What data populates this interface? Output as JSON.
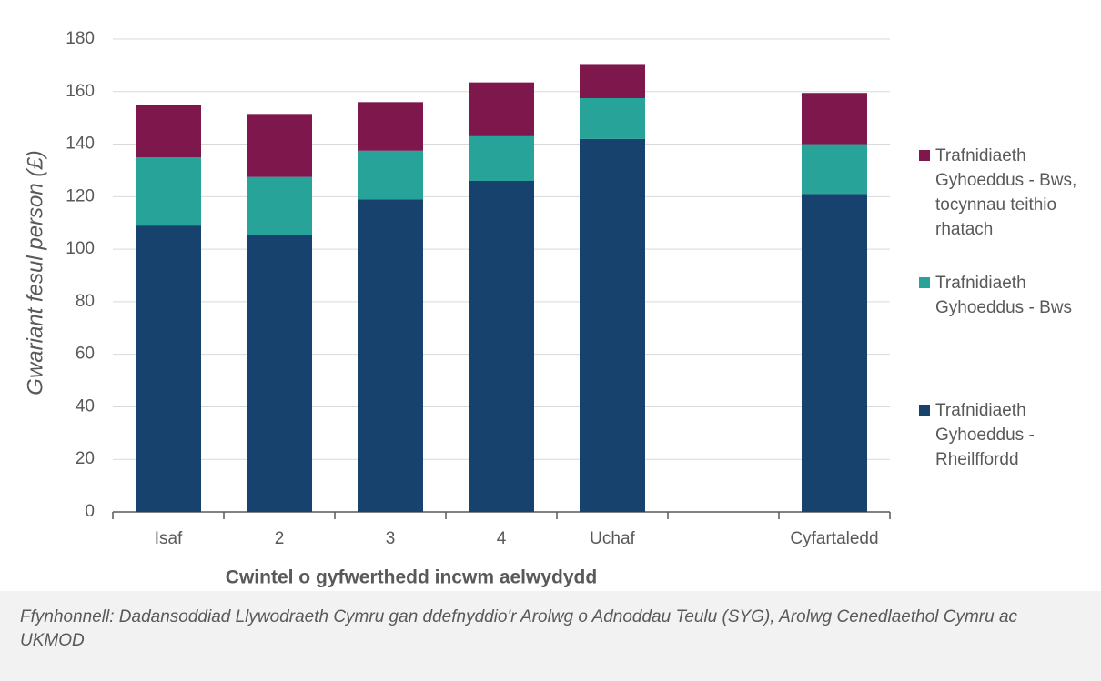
{
  "chart_data": {
    "type": "stacked_bar",
    "ylabel": "Gwariant fesul person (£)",
    "xlabel": "Cwintel o gyfwerthedd incwm aelwydydd",
    "source": "Ffynhonnell: Dadansoddiad Llywodraeth Cymru gan ddefnyddio'r Arolwg o Adnoddau Teulu (SYG), Arolwg Cenedlaethol Cymru ac UKMOD",
    "categories": [
      "Isaf",
      "2",
      "3",
      "4",
      "Uchaf",
      null,
      "Cyfartaledd"
    ],
    "series": [
      {
        "name": "Trafnidiaeth Gyhoeddus - Rheilffordd",
        "color": "#17426d",
        "values": [
          109,
          105.5,
          119,
          126,
          142,
          null,
          121
        ]
      },
      {
        "name": "Trafnidiaeth Gyhoeddus - Bws",
        "color": "#28a399",
        "values": [
          26,
          22,
          18.5,
          17,
          15.5,
          null,
          19
        ]
      },
      {
        "name": "Trafnidiaeth Gyhoeddus - Bws, tocynnau teithio rhatach",
        "color": "#7d174c",
        "values": [
          20,
          24,
          18.5,
          20.5,
          13,
          null,
          19.5
        ]
      }
    ],
    "ylim": [
      0,
      180
    ],
    "yticks": [
      0,
      20,
      40,
      60,
      80,
      100,
      120,
      140,
      160,
      180
    ],
    "grid": true
  }
}
